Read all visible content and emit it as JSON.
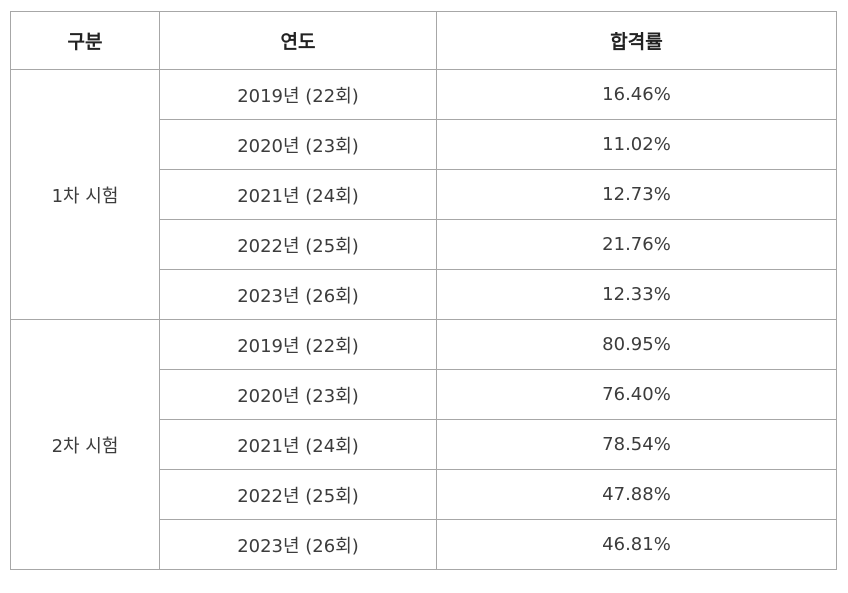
{
  "table": {
    "headers": [
      "구분",
      "연도",
      "합격률"
    ],
    "groups": [
      {
        "label": "1차 시험",
        "rows": [
          {
            "year": "2019년 (22회)",
            "rate": "16.46%"
          },
          {
            "year": "2020년 (23회)",
            "rate": "11.02%"
          },
          {
            "year": "2021년 (24회)",
            "rate": "12.73%"
          },
          {
            "year": "2022년 (25회)",
            "rate": "21.76%"
          },
          {
            "year": "2023년 (26회)",
            "rate": "12.33%"
          }
        ]
      },
      {
        "label": "2차 시험",
        "rows": [
          {
            "year": "2019년 (22회)",
            "rate": "80.95%"
          },
          {
            "year": "2020년 (23회)",
            "rate": "76.40%"
          },
          {
            "year": "2021년 (24회)",
            "rate": "78.54%"
          },
          {
            "year": "2022년 (25회)",
            "rate": "47.88%"
          },
          {
            "year": "2023년 (26회)",
            "rate": "46.81%"
          }
        ]
      }
    ]
  }
}
